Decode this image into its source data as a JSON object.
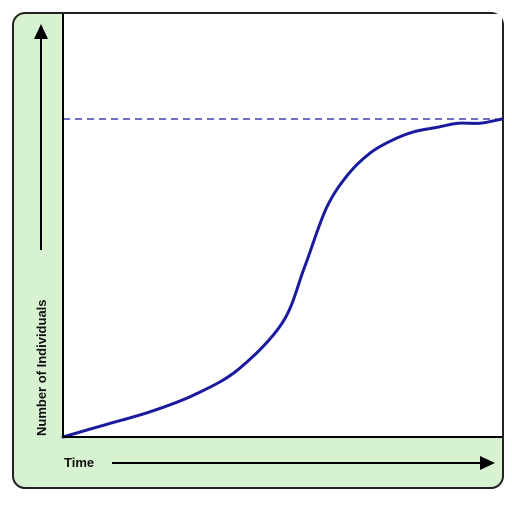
{
  "chart_data": {
    "type": "line",
    "title": "",
    "xlabel": "Time",
    "ylabel": "Number of Individuals",
    "x_ticks": false,
    "y_ticks": false,
    "grid": false,
    "xlim": [
      0,
      1
    ],
    "ylim": [
      0,
      1
    ],
    "series": [
      {
        "color": "#1a1a9e",
        "x": [
          0.0,
          0.1,
          0.2,
          0.3,
          0.4,
          0.5,
          0.55,
          0.6,
          0.65,
          0.7,
          0.75,
          0.8,
          0.85,
          0.9,
          0.95,
          1.0
        ],
        "y": [
          0.0,
          0.03,
          0.06,
          0.1,
          0.16,
          0.27,
          0.4,
          0.54,
          0.62,
          0.67,
          0.7,
          0.72,
          0.73,
          0.74,
          0.74,
          0.75
        ]
      }
    ],
    "reference_line": {
      "y": 0.75,
      "style": "dashed",
      "color": "#1a1a9e"
    }
  },
  "colors": {
    "panel_background": "#d6f2d0",
    "panel_border": "#222222",
    "plot_background": "#ffffff",
    "axis": "#000000",
    "curve": "#1a1a9e"
  }
}
